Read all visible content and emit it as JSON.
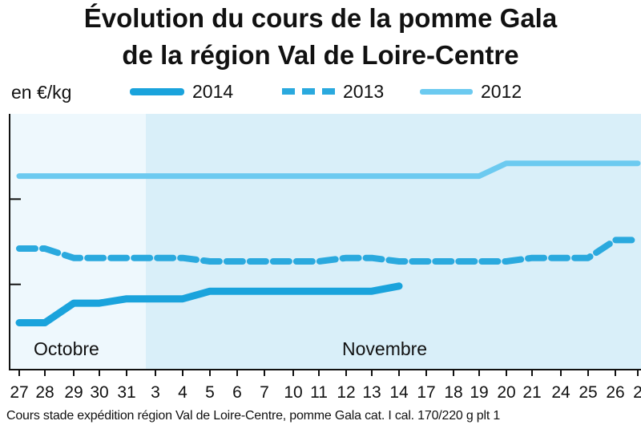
{
  "title_line1": "Évolution du cours de la pomme Gala",
  "title_line2": "de la région Val de Loire-Centre",
  "unit_label": "en €/kg",
  "footnote": "Cours stade expédition région Val de Loire-Centre, pomme Gala cat. I cal. 170/220 g plt 1",
  "legend": [
    {
      "label": "2014",
      "style": "solid-thick",
      "color": "#1aa3dc"
    },
    {
      "label": "2013",
      "style": "dashed",
      "color": "#2aa9de"
    },
    {
      "label": "2012",
      "style": "solid",
      "color": "#6ccaf0"
    }
  ],
  "month_labels": [
    "Octobre",
    "Novembre"
  ],
  "chart_data": {
    "type": "line",
    "title": "Évolution du cours de la pomme Gala de la région Val de Loire-Centre",
    "ylabel": "en €/kg",
    "x": [
      "27",
      "28",
      "29",
      "30",
      "31",
      "3",
      "4",
      "5",
      "6",
      "7",
      "10",
      "11",
      "12",
      "13",
      "14",
      "17",
      "18",
      "19",
      "20",
      "21",
      "24",
      "25",
      "26",
      "2"
    ],
    "ylim": [
      0,
      3
    ],
    "y_tick_labels_shown": false,
    "background_bands": [
      {
        "label": "Octobre",
        "from": "27",
        "to": "31"
      },
      {
        "label": "Novembre",
        "from": "3",
        "to": "2"
      }
    ],
    "series": [
      {
        "name": "2014",
        "values": [
          0.55,
          0.55,
          0.78,
          0.78,
          0.83,
          0.83,
          0.83,
          0.92,
          0.92,
          0.92,
          0.92,
          0.92,
          0.92,
          0.92,
          0.98,
          null,
          null,
          null,
          null,
          null,
          null,
          null,
          null,
          null
        ]
      },
      {
        "name": "2013",
        "values": [
          1.42,
          1.42,
          1.31,
          1.31,
          1.31,
          1.31,
          1.31,
          1.27,
          1.27,
          1.27,
          1.27,
          1.27,
          1.31,
          1.31,
          1.27,
          1.27,
          1.27,
          1.27,
          1.27,
          1.31,
          1.31,
          1.31,
          1.52,
          1.52
        ]
      },
      {
        "name": "2012",
        "values": [
          2.27,
          2.27,
          2.27,
          2.27,
          2.27,
          2.27,
          2.27,
          2.27,
          2.27,
          2.27,
          2.27,
          2.27,
          2.27,
          2.27,
          2.27,
          2.27,
          2.27,
          2.27,
          2.42,
          2.42,
          2.42,
          2.42,
          2.42,
          2.42
        ]
      }
    ]
  }
}
